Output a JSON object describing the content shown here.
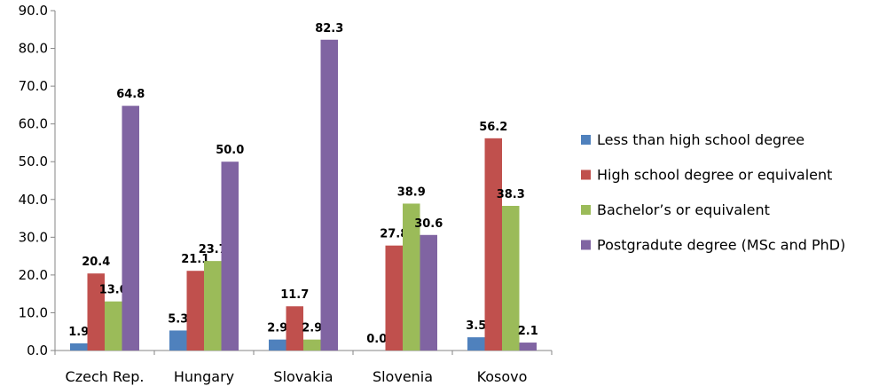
{
  "chart_data": {
    "type": "bar",
    "categories": [
      "Czech Rep.",
      "Hungary",
      "Slovakia",
      "Slovenia",
      "Kosovo"
    ],
    "series": [
      {
        "name": "Less than high school degree",
        "color": "#4F81BD",
        "values": [
          1.9,
          5.3,
          2.9,
          0.0,
          3.5
        ],
        "labels": [
          "1.9",
          "5.3",
          "2.9",
          "0.0",
          "3.5"
        ]
      },
      {
        "name": "High school degree or equivalent",
        "color": "#C0504D",
        "values": [
          20.4,
          21.1,
          11.7,
          27.8,
          56.2
        ],
        "labels": [
          "20.4",
          "21.1",
          "11.7",
          "27.8",
          "56.2"
        ]
      },
      {
        "name": "Bachelor’s or equivalent",
        "color": "#9BBB59",
        "values": [
          13.0,
          23.7,
          2.9,
          38.9,
          38.3
        ],
        "labels": [
          "13.0",
          "23.7",
          "2.9",
          "38.9",
          "38.3"
        ]
      },
      {
        "name": "Postgradute degree (MSc and PhD)",
        "color": "#8064A2",
        "values": [
          64.8,
          50.0,
          82.3,
          30.6,
          2.1
        ],
        "labels": [
          "64.8",
          "50.0",
          "82.3",
          "30.6",
          "2.1"
        ]
      }
    ],
    "ylim": [
      0,
      90
    ],
    "yticks": [
      0,
      10,
      20,
      30,
      40,
      50,
      60,
      70,
      80,
      90
    ],
    "ytick_labels": [
      "0.0",
      "10.0",
      "20.0",
      "30.0",
      "40.0",
      "50.0",
      "60.0",
      "70.0",
      "80.0",
      "90.0"
    ],
    "title": "",
    "xlabel": "",
    "ylabel": "",
    "grid": false,
    "legend_position": "right"
  }
}
